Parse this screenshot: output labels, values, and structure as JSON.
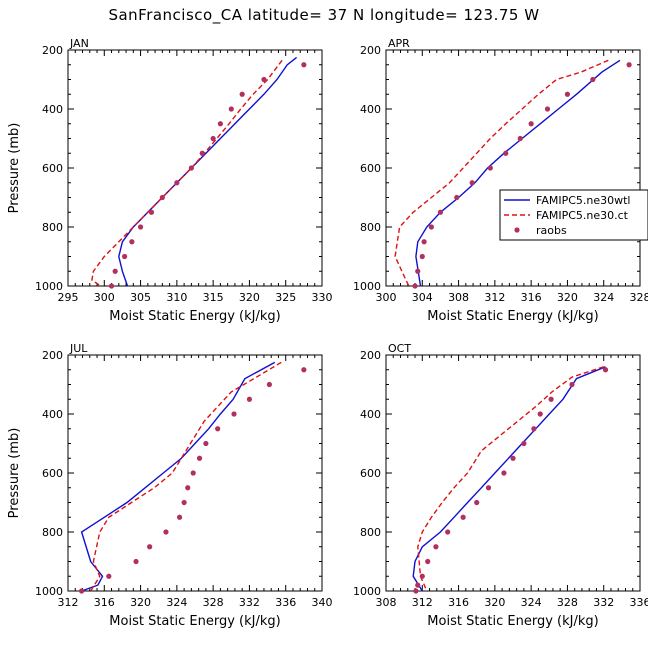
{
  "title": "SanFrancisco_CA  latitude= 37 N longitude= 123.75 W",
  "colors": {
    "model_wtl": "#1010d0",
    "model_ctl": "#e01010",
    "raobs": "#b03060"
  },
  "legend": [
    "FAMIPC5.ne30wtl",
    "FAMIPC5.ne30.ct",
    "raobs"
  ],
  "chart_data": [
    {
      "type": "line",
      "panel": "JAN",
      "xlabel": "Moist Static Energy (kJ/kg)",
      "ylabel": "Pressure (mb)",
      "xlim": [
        295,
        330
      ],
      "xticks": [
        295,
        300,
        305,
        310,
        315,
        320,
        325,
        330
      ],
      "ylim": [
        1000,
        200
      ],
      "yticks": [
        200,
        400,
        600,
        800,
        1000
      ],
      "y_reversed": true,
      "series": [
        {
          "name": "FAMIPC5.ne30wtl",
          "style": "solid",
          "color": "#1010d0",
          "x": [
            326.5,
            325.2,
            323.8,
            322.0,
            320.0,
            318.0,
            316.0,
            314.0,
            312.0,
            310.0,
            308.0,
            306.0,
            304.0,
            302.5,
            302.0,
            302.5,
            303.2
          ],
          "y": [
            225,
            250,
            300,
            350,
            400,
            450,
            500,
            550,
            600,
            650,
            700,
            750,
            800,
            850,
            900,
            950,
            1000
          ]
        },
        {
          "name": "FAMIPC5.ne30.ct",
          "style": "dashed",
          "color": "#e01010",
          "x": [
            324.5,
            322.5,
            320.5,
            318.8,
            317.2,
            315.5,
            313.8,
            312.0,
            310.0,
            308.0,
            306.0,
            304.0,
            302.0,
            300.0,
            298.5,
            298.3,
            299.5
          ],
          "y": [
            235,
            300,
            350,
            400,
            450,
            500,
            550,
            600,
            650,
            700,
            750,
            800,
            850,
            900,
            950,
            980,
            1000
          ]
        },
        {
          "name": "raobs",
          "style": "markers",
          "color": "#b03060",
          "x": [
            327.5,
            322.0,
            319.0,
            317.5,
            316.0,
            315.0,
            313.5,
            312.0,
            310.0,
            308.0,
            306.5,
            305.0,
            303.8,
            302.8,
            301.5,
            301.0
          ],
          "y": [
            250,
            300,
            350,
            400,
            450,
            500,
            550,
            600,
            650,
            700,
            750,
            800,
            850,
            900,
            950,
            1000
          ]
        }
      ]
    },
    {
      "type": "line",
      "panel": "APR",
      "xlabel": "Moist Static Energy (kJ/kg)",
      "ylabel": "",
      "xlim": [
        300,
        328
      ],
      "xticks": [
        300,
        304,
        308,
        312,
        316,
        320,
        324,
        328
      ],
      "ylim": [
        1000,
        200
      ],
      "yticks": [
        200,
        400,
        600,
        800,
        1000
      ],
      "y_reversed": true,
      "series": [
        {
          "name": "FAMIPC5.ne30wtl",
          "style": "solid",
          "color": "#1010d0",
          "x": [
            325.8,
            323.8,
            321.0,
            319.0,
            317.0,
            315.0,
            313.0,
            311.2,
            309.8,
            308.0,
            306.0,
            304.5,
            303.5,
            303.3,
            303.8
          ],
          "y": [
            235,
            275,
            350,
            400,
            450,
            500,
            550,
            600,
            650,
            700,
            750,
            800,
            850,
            900,
            1000
          ]
        },
        {
          "name": "FAMIPC5.ne30.ct",
          "style": "dashed",
          "color": "#e01010",
          "x": [
            324.5,
            321.5,
            318.8,
            316.8,
            315.0,
            313.2,
            311.5,
            310.0,
            308.5,
            307.0,
            305.0,
            303.0,
            301.5,
            301.0,
            302.5
          ],
          "y": [
            235,
            275,
            300,
            350,
            400,
            450,
            500,
            550,
            600,
            650,
            700,
            750,
            800,
            900,
            1000
          ]
        },
        {
          "name": "raobs",
          "style": "markers",
          "color": "#b03060",
          "x": [
            326.8,
            322.8,
            320.0,
            317.8,
            316.0,
            314.8,
            313.2,
            311.5,
            309.5,
            307.8,
            306.0,
            305.0,
            304.2,
            304.0,
            303.5,
            303.2
          ],
          "y": [
            250,
            300,
            350,
            400,
            450,
            500,
            550,
            600,
            650,
            700,
            750,
            800,
            850,
            900,
            950,
            1000
          ]
        }
      ]
    },
    {
      "type": "line",
      "panel": "JUL",
      "xlabel": "Moist Static Energy (kJ/kg)",
      "ylabel": "Pressure (mb)",
      "xlim": [
        312,
        340
      ],
      "xticks": [
        312,
        316,
        320,
        324,
        328,
        332,
        336,
        340
      ],
      "ylim": [
        1000,
        200
      ],
      "yticks": [
        200,
        400,
        600,
        800,
        1000
      ],
      "y_reversed": true,
      "series": [
        {
          "name": "FAMIPC5.ne30wtl",
          "style": "solid",
          "color": "#1010d0",
          "x": [
            334.8,
            331.5,
            330.2,
            328.8,
            327.5,
            326.0,
            324.5,
            322.5,
            320.5,
            318.5,
            316.0,
            313.5,
            314.5,
            315.8,
            315.3,
            313.5
          ],
          "y": [
            225,
            280,
            350,
            400,
            450,
            500,
            550,
            600,
            650,
            700,
            750,
            800,
            900,
            950,
            980,
            1000
          ]
        },
        {
          "name": "FAMIPC5.ne30.ct",
          "style": "dashed",
          "color": "#e01010",
          "x": [
            335.5,
            332.5,
            330.0,
            328.5,
            327.0,
            325.0,
            323.5,
            321.5,
            319.0,
            316.5,
            315.5,
            314.8,
            315.5,
            314.5
          ],
          "y": [
            225,
            280,
            325,
            375,
            425,
            525,
            600,
            650,
            700,
            750,
            800,
            900,
            950,
            1000
          ]
        },
        {
          "name": "raobs",
          "style": "markers",
          "color": "#b03060",
          "x": [
            338.0,
            334.2,
            332.0,
            330.3,
            328.5,
            327.2,
            326.5,
            325.8,
            325.2,
            324.8,
            324.3,
            322.8,
            321.0,
            319.5,
            316.5,
            313.5
          ],
          "y": [
            250,
            300,
            350,
            400,
            450,
            500,
            550,
            600,
            650,
            700,
            750,
            800,
            850,
            900,
            950,
            1000
          ]
        }
      ]
    },
    {
      "type": "line",
      "panel": "OCT",
      "xlabel": "Moist Static Energy (kJ/kg)",
      "ylabel": "",
      "xlim": [
        308,
        336
      ],
      "xticks": [
        308,
        312,
        316,
        320,
        324,
        328,
        332,
        336
      ],
      "ylim": [
        1000,
        200
      ],
      "yticks": [
        200,
        400,
        600,
        800,
        1000
      ],
      "y_reversed": true,
      "series": [
        {
          "name": "FAMIPC5.ne30wtl",
          "style": "solid",
          "color": "#1010d0",
          "x": [
            332.2,
            329.0,
            327.5,
            326.0,
            324.5,
            323.0,
            321.5,
            320.0,
            318.5,
            317.0,
            315.5,
            314.0,
            312.0,
            311.2,
            311.0,
            312.0
          ],
          "y": [
            240,
            280,
            350,
            400,
            450,
            500,
            550,
            600,
            650,
            700,
            750,
            800,
            850,
            900,
            950,
            1000
          ]
        },
        {
          "name": "FAMIPC5.ne30.ct",
          "style": "dashed",
          "color": "#e01010",
          "x": [
            332.0,
            328.5,
            326.3,
            324.5,
            322.5,
            320.5,
            318.5,
            317.0,
            315.5,
            314.2,
            313.0,
            312.0,
            311.5,
            311.8,
            312.5
          ],
          "y": [
            240,
            275,
            325,
            375,
            425,
            475,
            525,
            600,
            650,
            700,
            750,
            800,
            850,
            950,
            1000
          ]
        },
        {
          "name": "raobs",
          "style": "markers",
          "color": "#b03060",
          "x": [
            332.2,
            328.5,
            326.2,
            325.0,
            324.3,
            323.2,
            322.0,
            321.0,
            319.3,
            318.0,
            316.5,
            314.8,
            313.5,
            312.6,
            312.0,
            311.5,
            311.3
          ],
          "y": [
            250,
            300,
            350,
            400,
            450,
            500,
            550,
            600,
            650,
            700,
            750,
            800,
            850,
            900,
            950,
            980,
            1000
          ]
        }
      ]
    }
  ]
}
